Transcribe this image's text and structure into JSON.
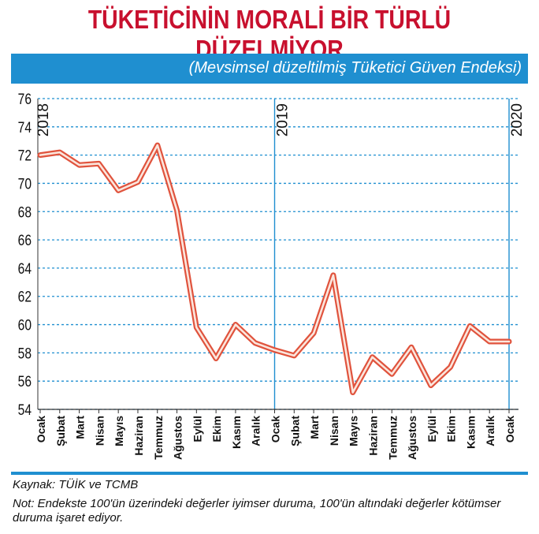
{
  "title": "TÜKETİCİNİN MORALİ BİR TÜRLÜ DÜZELMİYOR",
  "subtitle": "(Mevsimsel düzeltilmiş Tüketici Güven Endeksi)",
  "source": "Kaynak: TÜİK ve TCMB",
  "note": "Not: Endekste 100'ün üzerindeki değerler iyimser duruma, 100'ün altındaki değerler kötümser duruma işaret ediyor.",
  "colors": {
    "title": "#c8102e",
    "band": "#1f8fd0",
    "line": "#e0533d",
    "grid": "#1f8fd0"
  },
  "chart_data": {
    "type": "line",
    "categories": [
      "Ocak",
      "Şubat",
      "Mart",
      "Nisan",
      "Mayıs",
      "Haziran",
      "Temmuz",
      "Ağustos",
      "Eylül",
      "Ekim",
      "Kasım",
      "Aralık",
      "Ocak",
      "Şubat",
      "Mart",
      "Nisan",
      "Mayıs",
      "Haziran",
      "Temmuz",
      "Ağustos",
      "Eylül",
      "Ekim",
      "Kasım",
      "Aralık",
      "Ocak"
    ],
    "year_markers": [
      {
        "label": "2018",
        "index": 0
      },
      {
        "label": "2019",
        "index": 12
      },
      {
        "label": "2020",
        "index": 24
      }
    ],
    "series": [
      {
        "values": [
          72.0,
          72.2,
          71.3,
          71.4,
          69.5,
          70.1,
          72.7,
          68.1,
          59.8,
          57.6,
          60.0,
          58.7,
          58.2,
          57.8,
          59.4,
          63.5,
          55.2,
          57.7,
          56.5,
          58.4,
          55.7,
          57.0,
          59.9,
          58.8,
          58.8
        ]
      }
    ],
    "ylim": [
      54,
      76
    ],
    "yticks": [
      54,
      56,
      58,
      60,
      62,
      64,
      66,
      68,
      70,
      72,
      74,
      76
    ],
    "grid": true,
    "xlabel": "",
    "ylabel": ""
  }
}
